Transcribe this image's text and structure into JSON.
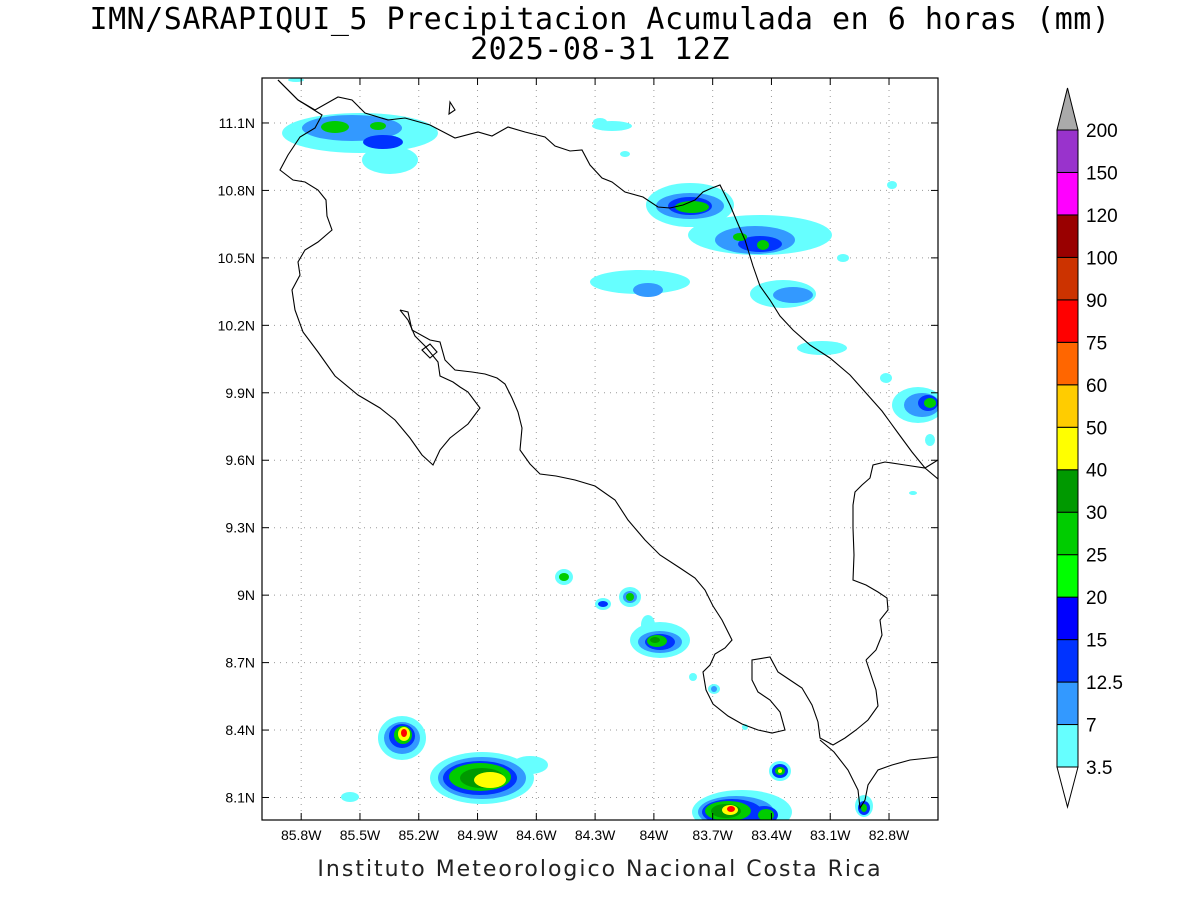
{
  "title": "IMN/SARAPIQUI_5 Precipitacion Acumulada en 6 horas (mm)",
  "subtitle": "2025-08-31 12Z",
  "footer": "Instituto Meteorologico Nacional Costa Rica",
  "chart_data": {
    "type": "heatmap",
    "x_ticks": [
      "85.8W",
      "85.5W",
      "85.2W",
      "84.9W",
      "84.6W",
      "84.3W",
      "84W",
      "83.7W",
      "83.4W",
      "83.1W",
      "82.8W"
    ],
    "y_ticks": [
      "11.1N",
      "10.8N",
      "10.5N",
      "10.2N",
      "9.9N",
      "9.6N",
      "9.3N",
      "9N",
      "8.7N",
      "8.4N",
      "8.1N"
    ],
    "xlim": [
      -86.0,
      -82.55
    ],
    "ylim": [
      8.0,
      11.3
    ],
    "grid": true,
    "colorbar": {
      "position": "right",
      "levels": [
        "3.5",
        "7",
        "12.5",
        "15",
        "20",
        "25",
        "30",
        "40",
        "50",
        "60",
        "75",
        "90",
        "100",
        "120",
        "150",
        "200"
      ],
      "colors": [
        "#66ffff",
        "#3399ff",
        "#0033ff",
        "#0000ff",
        "#00ff00",
        "#00cc00",
        "#009900",
        "#ffff00",
        "#ffcc00",
        "#ff6600",
        "#ff0000",
        "#cc3300",
        "#990000",
        "#ff00ff",
        "#9933cc",
        "#f2f2f2",
        "#aaaaaa"
      ]
    },
    "rain_cells": [
      {
        "lon": -85.6,
        "lat": 11.08,
        "max_mm": 20
      },
      {
        "lon": -85.4,
        "lat": 11.06,
        "max_mm": 15
      },
      {
        "lon": -83.78,
        "lat": 10.74,
        "max_mm": 25
      },
      {
        "lon": -83.5,
        "lat": 10.6,
        "max_mm": 20
      },
      {
        "lon": -84.05,
        "lat": 10.39,
        "max_mm": 12.5
      },
      {
        "lon": -83.35,
        "lat": 10.33,
        "max_mm": 12.5
      },
      {
        "lon": -82.6,
        "lat": 9.86,
        "max_mm": 25
      },
      {
        "lon": -84.45,
        "lat": 9.08,
        "max_mm": 15
      },
      {
        "lon": -84.1,
        "lat": 8.99,
        "max_mm": 20
      },
      {
        "lon": -83.98,
        "lat": 8.78,
        "max_mm": 25
      },
      {
        "lon": -85.25,
        "lat": 8.39,
        "max_mm": 60
      },
      {
        "lon": -84.77,
        "lat": 8.18,
        "max_mm": 40
      },
      {
        "lon": -83.55,
        "lat": 8.05,
        "max_mm": 75
      },
      {
        "lon": -83.35,
        "lat": 8.22,
        "max_mm": 25
      },
      {
        "lon": -82.85,
        "lat": 8.06,
        "max_mm": 20
      }
    ]
  }
}
